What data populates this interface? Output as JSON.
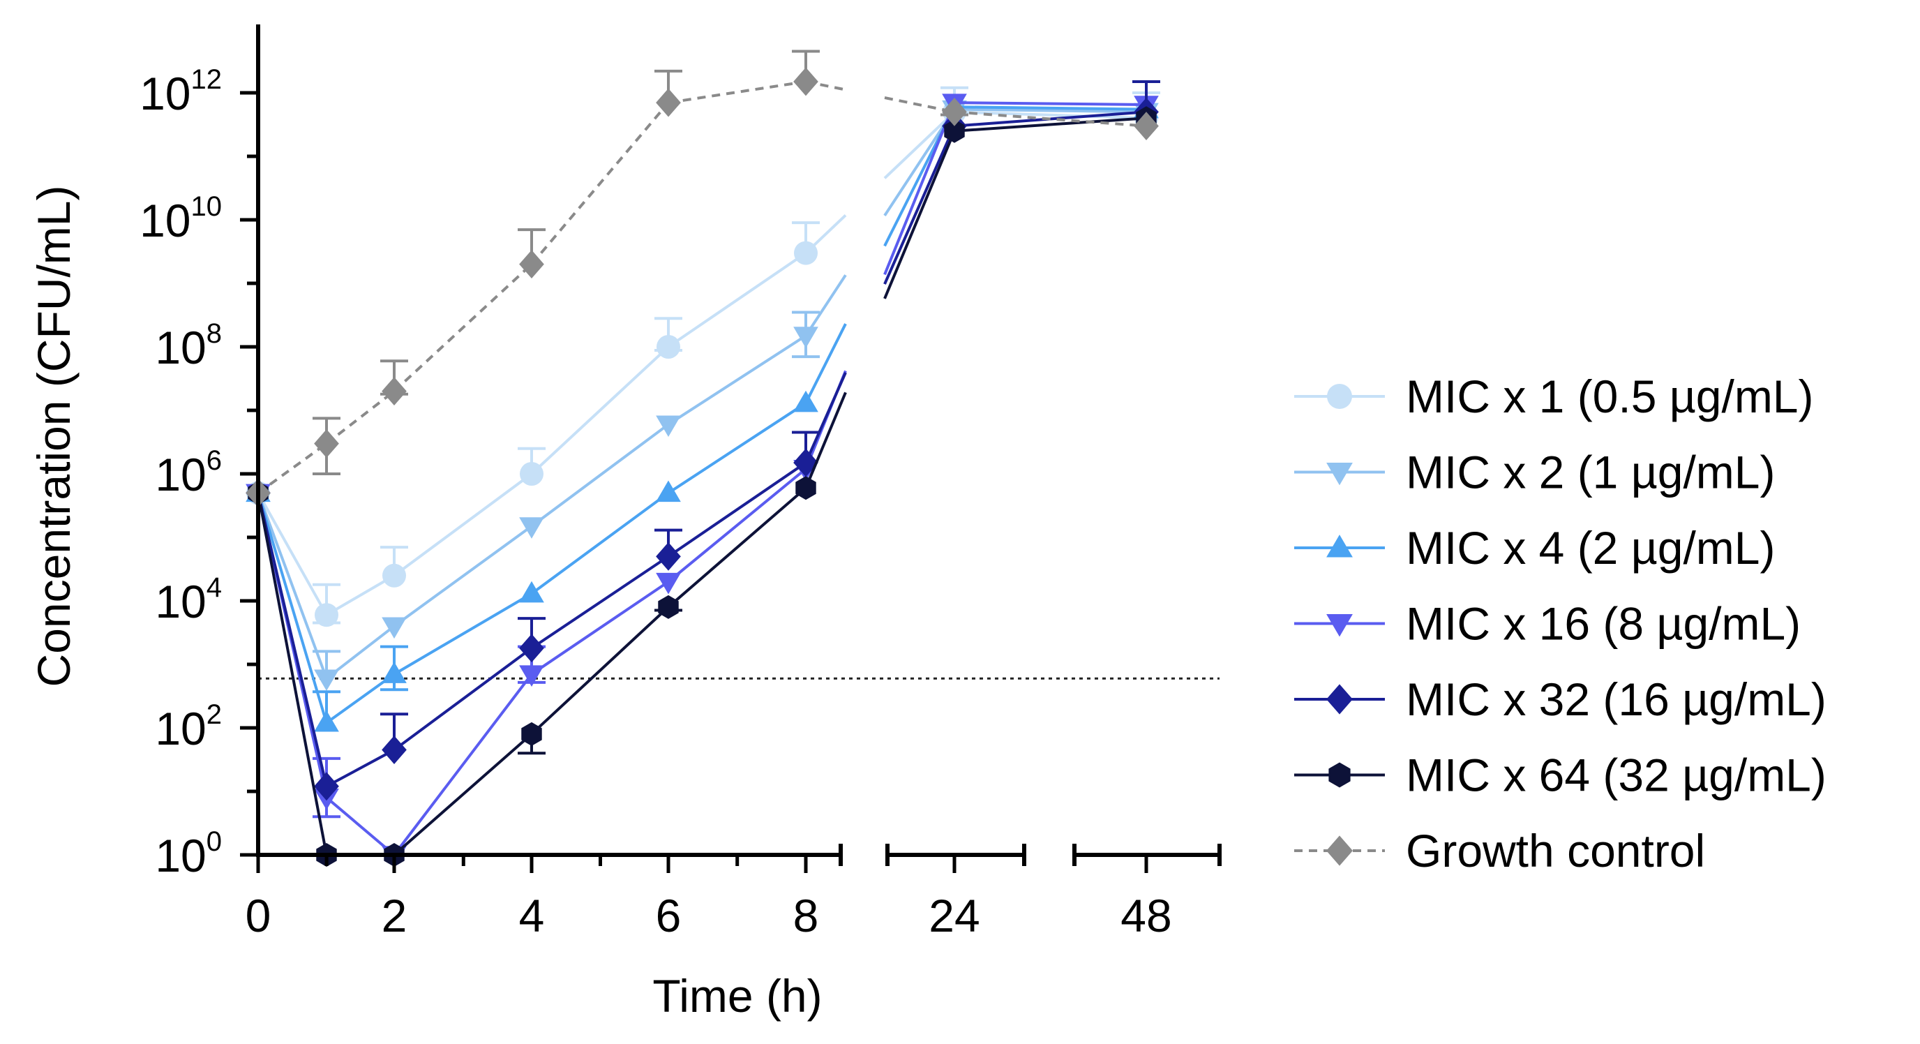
{
  "chart_data": {
    "type": "line",
    "title": "",
    "xlabel": "Time (h)",
    "ylabel": "Concentration (CFU/mL)",
    "y_scale": "log10",
    "ylim": [
      1,
      10000000000000.0
    ],
    "x_ticks": [
      {
        "value": 0,
        "label": "0"
      },
      {
        "value": 2,
        "label": "2"
      },
      {
        "value": 4,
        "label": "4"
      },
      {
        "value": 6,
        "label": "6"
      },
      {
        "value": 8,
        "label": "8"
      },
      {
        "value": 24,
        "label": "24"
      },
      {
        "value": 48,
        "label": "48"
      }
    ],
    "y_ticks": [
      {
        "value": 1,
        "base": "10",
        "exp": "0"
      },
      {
        "value": 100,
        "base": "10",
        "exp": "2"
      },
      {
        "value": 10000,
        "base": "10",
        "exp": "4"
      },
      {
        "value": 1000000,
        "base": "10",
        "exp": "6"
      },
      {
        "value": 100000000,
        "base": "10",
        "exp": "8"
      },
      {
        "value": 10000000000,
        "base": "10",
        "exp": "10"
      },
      {
        "value": 1000000000000,
        "base": "10",
        "exp": "12"
      }
    ],
    "axis_segments": [
      [
        0,
        8.5
      ],
      [
        23,
        33
      ],
      [
        40,
        52
      ]
    ],
    "detection_limit": 600,
    "x": [
      0,
      1,
      2,
      4,
      6,
      8,
      24,
      48
    ],
    "legend_position": "right",
    "series": [
      {
        "name": "MIC x 1 (0.5 µg/mL)",
        "color": "#c6e0f7",
        "marker": "circle",
        "values": [
          500000,
          6000,
          25000,
          1000000,
          100000000,
          3000000000,
          500000000000,
          400000000000
        ],
        "err_up": [
          0,
          12000,
          45000,
          1500000,
          180000000,
          6000000000,
          700000000000,
          600000000000
        ],
        "err_down": [
          0,
          1500,
          0,
          0,
          12000000,
          0,
          0,
          0
        ]
      },
      {
        "name": "MIC x 2 (1 µg/mL)",
        "color": "#90c2f0",
        "marker": "triangle-down",
        "values": [
          500000,
          600,
          4000,
          150000,
          6000000,
          150000000,
          550000000000,
          500000000000
        ],
        "err_up": [
          0,
          1000,
          0,
          0,
          0,
          200000000,
          0,
          0
        ],
        "err_down": [
          0,
          0,
          0,
          0,
          0,
          80000000,
          0,
          0
        ]
      },
      {
        "name": "MIC x 4 (2 µg/mL)",
        "color": "#4aa3f2",
        "marker": "triangle-up",
        "values": [
          500000,
          120,
          700,
          13000,
          500000,
          13000000,
          600000000000,
          550000000000
        ],
        "err_up": [
          0,
          250,
          1200,
          0,
          0,
          0,
          0,
          0
        ],
        "err_down": [
          0,
          0,
          300,
          0,
          0,
          0,
          0,
          0
        ]
      },
      {
        "name": "MIC x 16 (8 µg/mL)",
        "color": "#5a5cf0",
        "marker": "triangle-down",
        "values": [
          500000,
          8,
          1,
          700,
          20000,
          1200000,
          700000000000,
          650000000000
        ],
        "err_up": [
          0,
          25,
          0,
          1200,
          0,
          0,
          0,
          0
        ],
        "err_down": [
          0,
          4,
          0,
          180,
          0,
          0,
          0,
          0
        ]
      },
      {
        "name": "MIC x 32 (16 µg/mL)",
        "color": "#1a1f96",
        "marker": "diamond",
        "values": [
          500000,
          12,
          45,
          1800,
          50000,
          1500000,
          300000000000,
          500000000000
        ],
        "err_up": [
          0,
          0,
          120,
          3500,
          80000,
          3000000,
          0,
          1000000000000
        ],
        "err_down": [
          0,
          0,
          0,
          0,
          0,
          0,
          0,
          0
        ]
      },
      {
        "name": "MIC x 64 (32 µg/mL)",
        "color": "#0d1238",
        "marker": "hexagon",
        "values": [
          500000,
          1,
          1,
          80,
          8000,
          600000,
          250000000000,
          400000000000
        ],
        "err_up": [
          0,
          0,
          0,
          0,
          0,
          0,
          0,
          0
        ],
        "err_down": [
          0,
          0,
          0,
          40,
          900,
          0,
          0,
          0
        ]
      },
      {
        "name": "Growth control",
        "color": "#8a8a8a",
        "marker": "diamond",
        "dashed": true,
        "values": [
          500000,
          3000000,
          20000000,
          2000000000,
          700000000000,
          1500000000000,
          500000000000,
          300000000000
        ],
        "err_up": [
          0,
          4500000,
          40000000,
          5000000000,
          1500000000000,
          3000000000000,
          0,
          0
        ],
        "err_down": [
          0,
          2000000,
          2000000,
          0,
          0,
          0,
          50000000000,
          0
        ]
      }
    ]
  }
}
